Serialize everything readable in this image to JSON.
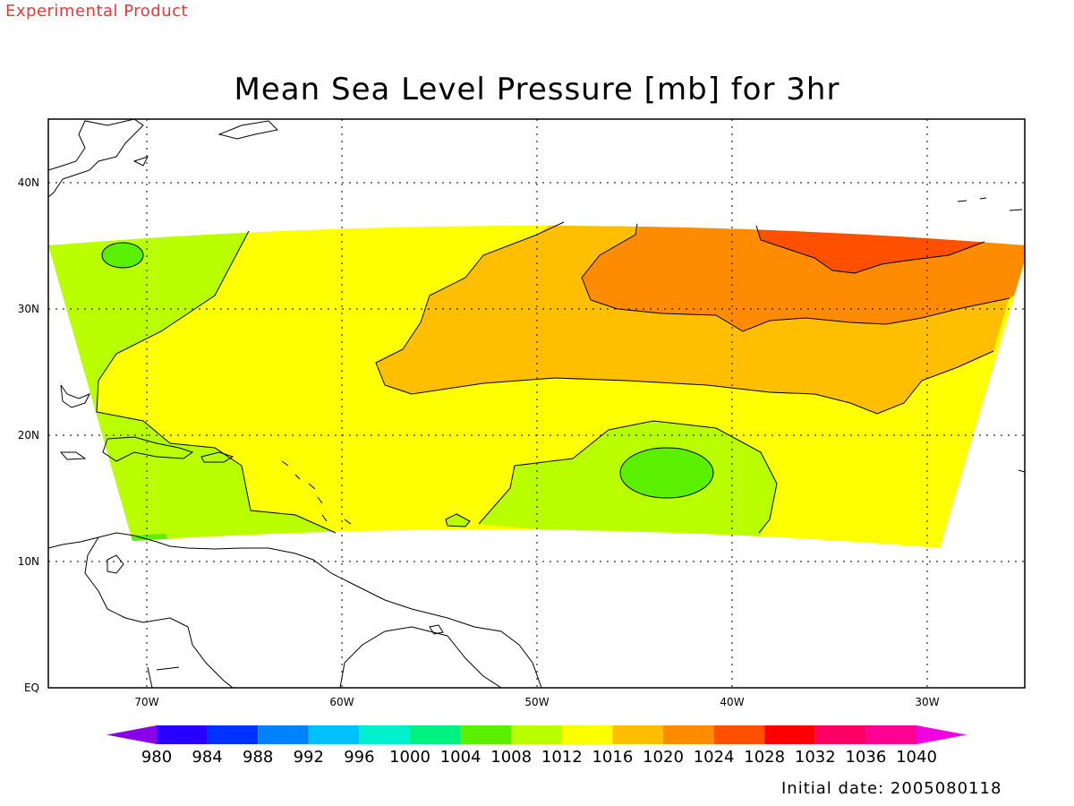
{
  "watermark": "Experimental Product",
  "title": "Mean Sea Level Pressure [mb] for 3hr",
  "initial_date_label": "Initial date:",
  "initial_date": "2005080118",
  "lat_labels": [
    "EQ",
    "10N",
    "20N",
    "30N",
    "40N"
  ],
  "lon_labels": [
    "70W",
    "60W",
    "50W",
    "40W",
    "30W"
  ],
  "colorbar": {
    "levels": [
      "980",
      "984",
      "988",
      "992",
      "996",
      "1000",
      "1004",
      "1008",
      "1012",
      "1016",
      "1020",
      "1024",
      "1028",
      "1032",
      "1036",
      "1040"
    ],
    "colors": [
      "#8a00e8",
      "#2800ff",
      "#0032ff",
      "#0082ff",
      "#00c0ff",
      "#00f0d0",
      "#00f082",
      "#5af000",
      "#b9ff00",
      "#ffff00",
      "#ffbe00",
      "#ff8c00",
      "#ff5000",
      "#ff0000",
      "#ff0064",
      "#ff0096",
      "#f000dc"
    ]
  },
  "fill_colors": {
    "p1008": "#b9ff00",
    "p1012": "#ffff00",
    "p1016": "#ffbe00",
    "p1020": "#ff8c00",
    "p1024": "#ff5000",
    "low1004": "#5af000",
    "land_line": "#000000"
  }
}
